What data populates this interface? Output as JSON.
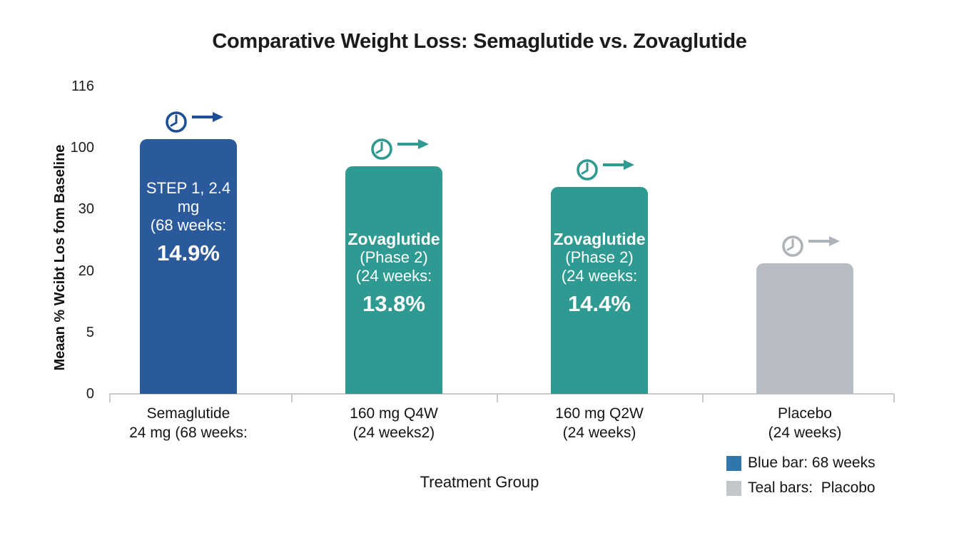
{
  "title": "Comparative Weight Loss: Semaglutide vs. Zovaglutide",
  "chart_data": {
    "type": "bar",
    "title": "Comparative Weight Loss: Semaglutide vs. Zovaglutide",
    "xlabel": "Treatment Group",
    "ylabel": "Meaan % Wcibt Los fom Baseline",
    "ytick_labels": [
      "116",
      "100",
      "30",
      "20",
      "5",
      "0"
    ],
    "grid": false,
    "legend_position": "bottom-right",
    "legend": [
      {
        "color": "#2e76ab",
        "label": "Blue bar: 68 weeks"
      },
      {
        "color": "#c3c6ca",
        "label": "Teal bars:  Placobo"
      }
    ],
    "bars": [
      {
        "category": [
          "Semaglutide",
          "24 mg (68 weeks:"
        ],
        "inner_lines": [
          "STEP 1, 2.4 mg",
          "(68 weeks:"
        ],
        "inner_bold_first": false,
        "value_label": "14.9%",
        "value": 14.9,
        "color": "#2a5a9c",
        "icon": "clock-arrow",
        "icon_color": "#1d4f96",
        "height_frac": 0.828
      },
      {
        "category": [
          "160 mg Q4W",
          "(24 weeks2)"
        ],
        "inner_lines": [
          "Zovaglutide",
          "(Phase 2)",
          "(24 weeks:"
        ],
        "inner_bold_first": true,
        "value_label": "13.8%",
        "value": 13.8,
        "color": "#2e9a91",
        "icon": "clock-arrow",
        "icon_color": "#2e9a91",
        "height_frac": 0.74
      },
      {
        "category": [
          "160 mg Q2W",
          "(24 weeks)"
        ],
        "inner_lines": [
          "Zovaglutide",
          "(Phase 2)",
          "(24 weeks:"
        ],
        "inner_bold_first": true,
        "value_label": "14.4%",
        "value": 14.4,
        "color": "#2e9a91",
        "icon": "clock-arrow",
        "icon_color": "#2e9a91",
        "height_frac": 0.673
      },
      {
        "category": [
          "Placebo",
          "(24 weeks)"
        ],
        "inner_lines": [],
        "inner_bold_first": false,
        "value_label": "",
        "value": null,
        "color": "#b7bcc2",
        "icon": "clock-arrow",
        "icon_color": "#aeb3b9",
        "height_frac": 0.425
      }
    ]
  }
}
